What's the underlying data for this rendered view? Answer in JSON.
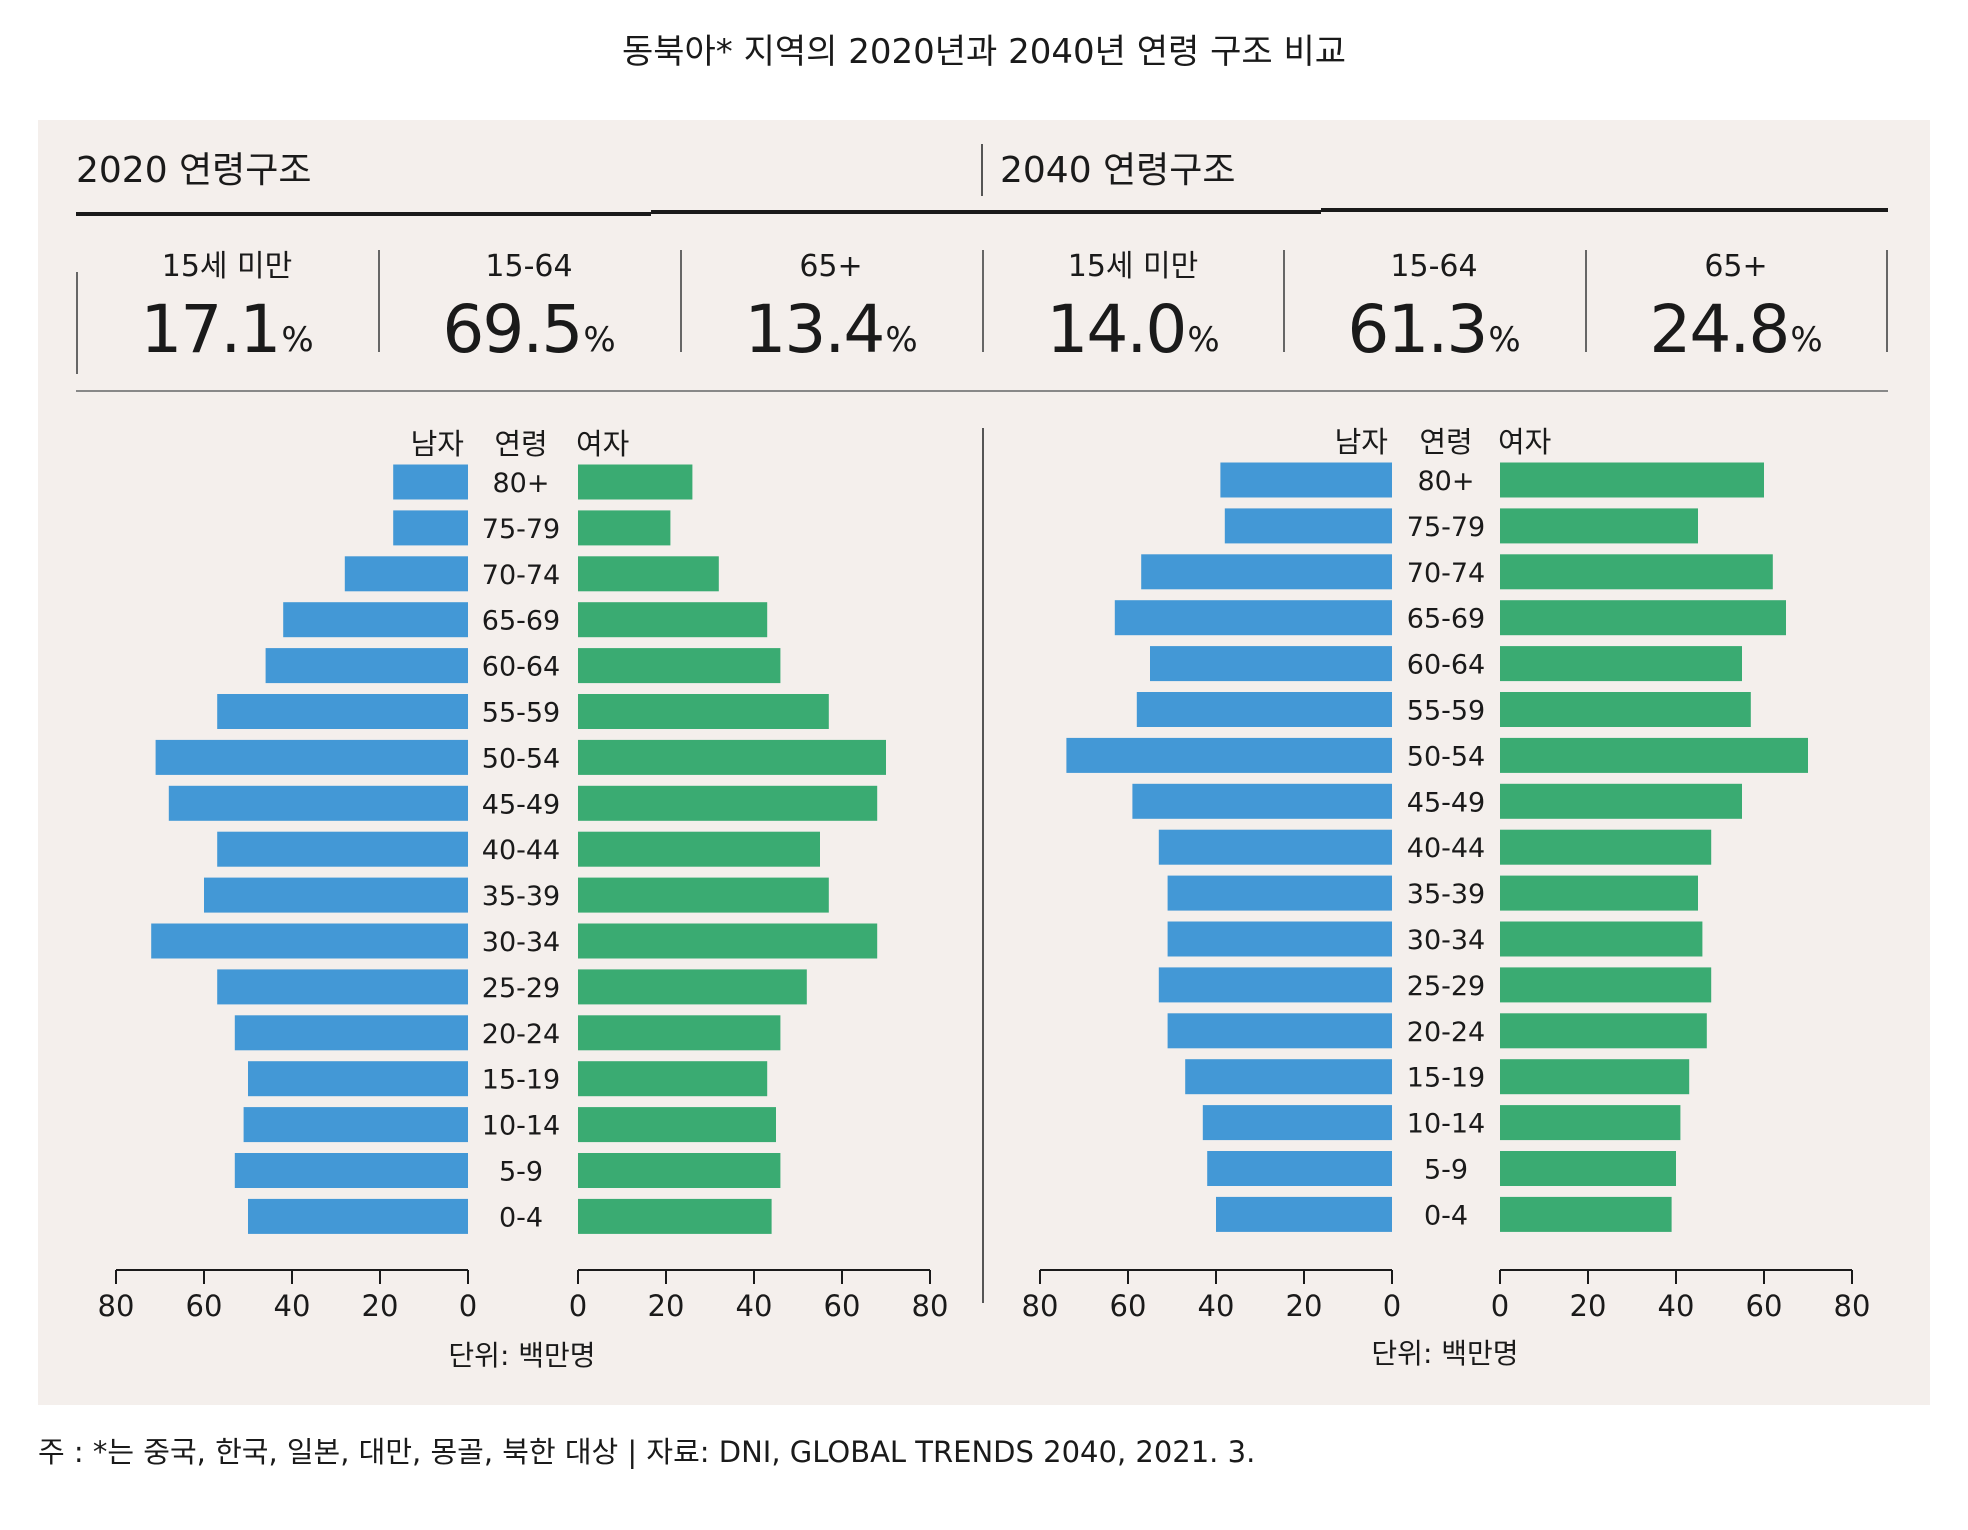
{
  "title": "동북아* 지역의 2020년과 2040년 연령 구조 비교",
  "colors": {
    "male": "#4398d6",
    "female": "#3aab72",
    "panel": "#f4efec"
  },
  "panels": [
    {
      "heading": "2020 연령구조",
      "stats": [
        {
          "label": "15세 미만",
          "value": "17.1",
          "unit": "%"
        },
        {
          "label": "15-64",
          "value": "69.5",
          "unit": "%"
        },
        {
          "label": "65+",
          "value": "13.4",
          "unit": "%"
        }
      ]
    },
    {
      "heading": "2040 연령구조",
      "stats": [
        {
          "label": "15세 미만",
          "value": "14.0",
          "unit": "%"
        },
        {
          "label": "15-64",
          "value": "61.3",
          "unit": "%"
        },
        {
          "label": "65+",
          "value": "24.8",
          "unit": "%"
        }
      ]
    }
  ],
  "chart_data": [
    {
      "type": "bar",
      "subtype": "population-pyramid",
      "header_labels": {
        "male": "남자",
        "age": "연령",
        "female": "여자"
      },
      "categories": [
        "80+",
        "75-79",
        "70-74",
        "65-69",
        "60-64",
        "55-59",
        "50-54",
        "45-49",
        "40-44",
        "35-39",
        "30-34",
        "25-29",
        "20-24",
        "15-19",
        "10-14",
        "5-9",
        "0-4"
      ],
      "series": [
        {
          "name": "남자",
          "values": [
            17,
            17,
            28,
            42,
            46,
            57,
            71,
            68,
            57,
            60,
            72,
            57,
            53,
            50,
            51,
            53,
            50
          ]
        },
        {
          "name": "여자",
          "values": [
            26,
            21,
            32,
            43,
            46,
            57,
            70,
            68,
            55,
            57,
            68,
            52,
            46,
            43,
            45,
            46,
            44
          ]
        }
      ],
      "xlim": [
        0,
        80
      ],
      "xticks": [
        "80",
        "60",
        "40",
        "20",
        "0",
        "0",
        "20",
        "40",
        "60",
        "80"
      ],
      "unit": "단위: 백만명"
    },
    {
      "type": "bar",
      "subtype": "population-pyramid",
      "header_labels": {
        "male": "남자",
        "age": "연령",
        "female": "여자"
      },
      "categories": [
        "80+",
        "75-79",
        "70-74",
        "65-69",
        "60-64",
        "55-59",
        "50-54",
        "45-49",
        "40-44",
        "35-39",
        "30-34",
        "25-29",
        "20-24",
        "15-19",
        "10-14",
        "5-9",
        "0-4"
      ],
      "series": [
        {
          "name": "남자",
          "values": [
            39,
            38,
            57,
            63,
            55,
            58,
            74,
            59,
            53,
            51,
            51,
            53,
            51,
            47,
            43,
            42,
            40
          ]
        },
        {
          "name": "여자",
          "values": [
            60,
            45,
            62,
            65,
            55,
            57,
            70,
            55,
            48,
            45,
            46,
            48,
            47,
            43,
            41,
            40,
            39
          ]
        }
      ],
      "xlim": [
        0,
        80
      ],
      "xticks": [
        "80",
        "60",
        "40",
        "20",
        "0",
        "0",
        "20",
        "40",
        "60",
        "80"
      ],
      "unit": "단위: 백만명"
    }
  ],
  "footnote": "주 : *는 중국, 한국, 일본, 대만, 몽골, 북한 대상 | 자료: DNI, GLOBAL TRENDS 2040, 2021. 3."
}
